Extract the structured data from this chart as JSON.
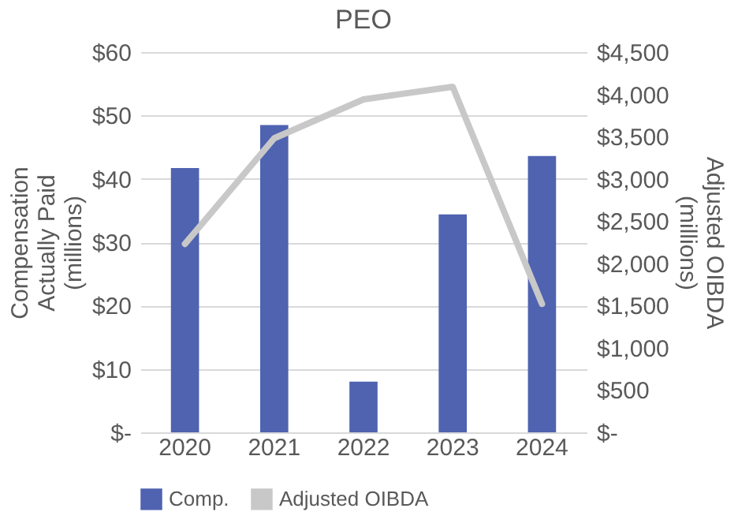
{
  "chart_data": {
    "type": "bar",
    "title": "PEO",
    "ylabel": "Compensation Actually Paid (millions)",
    "y2label": "Adjusted OIBDA (millions)",
    "categories": [
      "2020",
      "2021",
      "2022",
      "2023",
      "2024"
    ],
    "series": [
      {
        "name": "Comp.",
        "color": "#4f63b0",
        "values": [
          41.7,
          48.5,
          8.0,
          34.4,
          43.6
        ]
      },
      {
        "name": "Adjusted OIBDA",
        "type": "line",
        "axis": "y2",
        "color": "#c8c8c8",
        "values": [
          2230,
          3480,
          3940,
          4090,
          1520
        ]
      }
    ],
    "ylim": [
      0,
      60
    ],
    "yticks": [
      {
        "value": 0,
        "label": "$-"
      },
      {
        "value": 10,
        "label": "$10"
      },
      {
        "value": 20,
        "label": "$20"
      },
      {
        "value": 30,
        "label": "$30"
      },
      {
        "value": 40,
        "label": "$40"
      },
      {
        "value": 50,
        "label": "$50"
      },
      {
        "value": 60,
        "label": "$60"
      }
    ],
    "y2lim": [
      0,
      4500
    ],
    "y2ticks": [
      {
        "value": 0,
        "label": "$-"
      },
      {
        "value": 500,
        "label": "$500"
      },
      {
        "value": 1000,
        "label": "$1,000"
      },
      {
        "value": 1500,
        "label": "$1,500"
      },
      {
        "value": 2000,
        "label": "$2,000"
      },
      {
        "value": 2500,
        "label": "$2,500"
      },
      {
        "value": 3000,
        "label": "$3,000"
      },
      {
        "value": 3500,
        "label": "$3,500"
      },
      {
        "value": 4000,
        "label": "$4,000"
      },
      {
        "value": 4500,
        "label": "$4,500"
      }
    ],
    "grid": "y",
    "legend": "bottom",
    "line_style": "solid",
    "marker": "none"
  }
}
